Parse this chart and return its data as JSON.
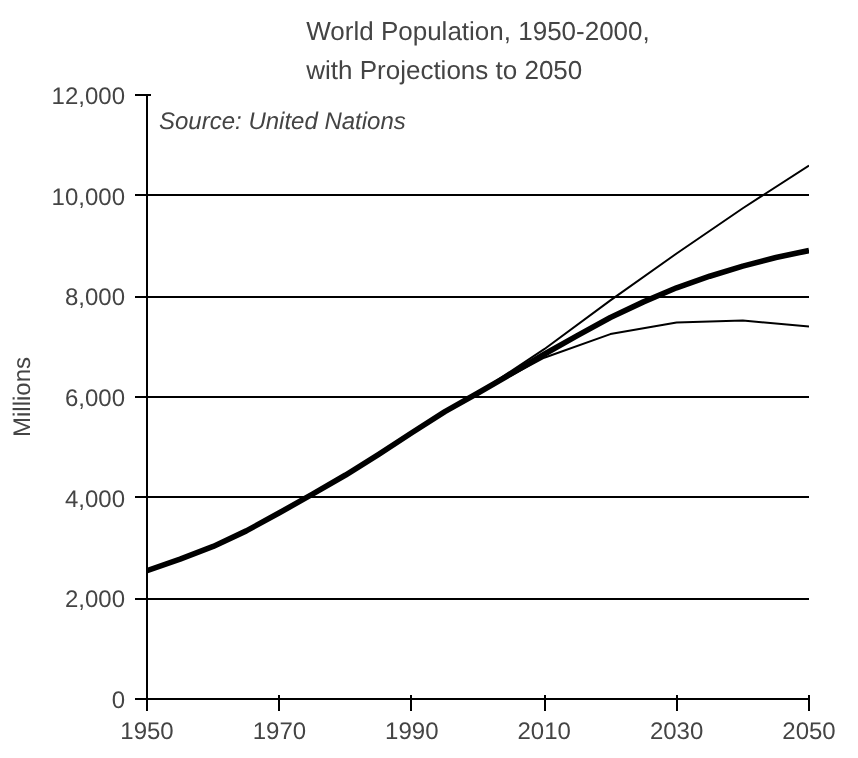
{
  "chart_data": {
    "type": "line",
    "title": "World Population, 1950-2000,\nwith Projections to 2050",
    "ylabel": "Millions",
    "annotations": [
      "Source: United Nations"
    ],
    "series": [
      {
        "color": "#000000",
        "x": [
          1950,
          1955,
          1960,
          1965,
          1970,
          1975,
          1980,
          1985,
          1990,
          1995,
          2000,
          2005,
          2010,
          2015,
          2020,
          2025,
          2030,
          2035,
          2040,
          2045,
          2050
        ],
        "values": [
          2550,
          2780,
          3030,
          3340,
          3700,
          4070,
          4450,
          4860,
          5290,
          5710,
          6080,
          6460,
          6850,
          7220,
          7580,
          7890,
          8170,
          8400,
          8600,
          8770,
          8910
        ]
      },
      {
        "color": "#000000",
        "x": [
          2000,
          2010,
          2020,
          2030,
          2040,
          2050
        ],
        "values": [
          6080,
          6950,
          7920,
          8850,
          9750,
          10600
        ]
      },
      {
        "color": "#000000",
        "x": [
          2000,
          2010,
          2020,
          2030,
          2040,
          2050
        ],
        "values": [
          6080,
          6780,
          7250,
          7480,
          7520,
          7400
        ]
      }
    ],
    "xlim": [
      1950,
      2050
    ],
    "xticks": [
      1950,
      1970,
      1990,
      2010,
      2030,
      2050
    ],
    "ylim": [
      0,
      12000
    ],
    "yticks": [
      {
        "value": 0,
        "label": "0"
      },
      {
        "value": 2000,
        "label": "2,000"
      },
      {
        "value": 4000,
        "label": "4,000"
      },
      {
        "value": 6000,
        "label": "6,000"
      },
      {
        "value": 8000,
        "label": "8,000"
      },
      {
        "value": 10000,
        "label": "10,000"
      },
      {
        "value": 12000,
        "label": "12,000"
      }
    ],
    "grid": "y",
    "line_style": "solid"
  }
}
